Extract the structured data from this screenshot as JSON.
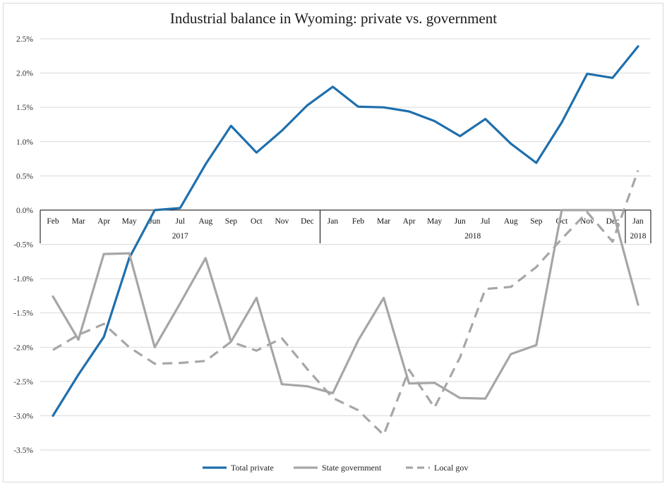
{
  "chart_data": {
    "type": "line",
    "title": "Industrial balance in Wyoming: private vs. government",
    "xlabel": "",
    "ylabel": "",
    "ylim": [
      -3.5,
      2.5
    ],
    "y_ticks": [
      "2.5%",
      "2.0%",
      "1.5%",
      "1.0%",
      "0.5%",
      "0.0%",
      "-0.5%",
      "-1.0%",
      "-1.5%",
      "-2.0%",
      "-2.5%",
      "-3.0%",
      "-3.5%"
    ],
    "grid": true,
    "legend_position": "bottom",
    "categories": [
      "Feb",
      "Mar",
      "Apr",
      "May",
      "Jun",
      "Jul",
      "Aug",
      "Sep",
      "Oct",
      "Nov",
      "Dec",
      "Jan",
      "Feb",
      "Mar",
      "Apr",
      "May",
      "Jun",
      "Jul",
      "Aug",
      "Sep",
      "Oct",
      "Nov",
      "Dec",
      "Jan"
    ],
    "category_groups": [
      {
        "label": "2017",
        "start": 0,
        "end": 10
      },
      {
        "label": "2018",
        "start": 11,
        "end": 22
      },
      {
        "label": "2018",
        "start": 23,
        "end": 23
      }
    ],
    "series": [
      {
        "name": "Total private",
        "color": "#1f6fad",
        "style": "solid",
        "values": [
          -3.0,
          -2.4,
          -1.85,
          -0.7,
          0.0,
          0.03,
          0.67,
          1.23,
          0.84,
          1.16,
          1.53,
          1.8,
          1.51,
          1.5,
          1.44,
          1.3,
          1.08,
          1.33,
          0.97,
          0.69,
          1.28,
          1.99,
          1.93,
          2.39
        ]
      },
      {
        "name": "State government",
        "color": "#a6a6a6",
        "style": "solid",
        "values": [
          -1.26,
          -1.89,
          -0.64,
          -0.63,
          -2.0,
          -1.36,
          -0.7,
          -1.92,
          -1.28,
          -2.54,
          -2.57,
          -2.67,
          -1.9,
          -1.28,
          -2.53,
          -2.52,
          -2.74,
          -2.75,
          -2.1,
          -1.97,
          0.0,
          0.0,
          0.0,
          -1.38
        ]
      },
      {
        "name": "Local gov",
        "color": "#a6a6a6",
        "style": "dashed",
        "values": [
          -2.04,
          -1.82,
          -1.66,
          -2.0,
          -2.24,
          -2.23,
          -2.2,
          -1.92,
          -2.05,
          -1.87,
          -2.32,
          -2.74,
          -2.92,
          -3.28,
          -2.33,
          -2.88,
          -2.15,
          -1.15,
          -1.12,
          -0.83,
          -0.42,
          -0.03,
          -0.46,
          0.58
        ]
      }
    ]
  }
}
